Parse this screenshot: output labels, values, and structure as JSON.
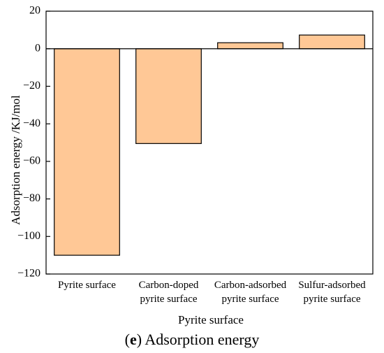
{
  "chart_data": {
    "type": "bar",
    "categories": [
      [
        "Pyrite surface"
      ],
      [
        "Carbon-doped",
        "pyrite surface"
      ],
      [
        "Carbon-adsorbed",
        "pyrite surface"
      ],
      [
        "Sulfur-adsorbed",
        "pyrite surface"
      ]
    ],
    "values": [
      -110,
      -50.5,
      3.2,
      7.3
    ],
    "xlabel": "Pyrite surface",
    "ylabel": "Adsorption energy /KJ/mol",
    "ylim": [
      -120,
      20
    ],
    "yticks": [
      20,
      0,
      -20,
      -40,
      -60,
      -80,
      -100,
      -120
    ],
    "bar_color": "#FFC896",
    "grid": false,
    "legend": "none"
  },
  "caption": {
    "open": "(",
    "letter": "e",
    "rest": ") Adsorption energy"
  }
}
